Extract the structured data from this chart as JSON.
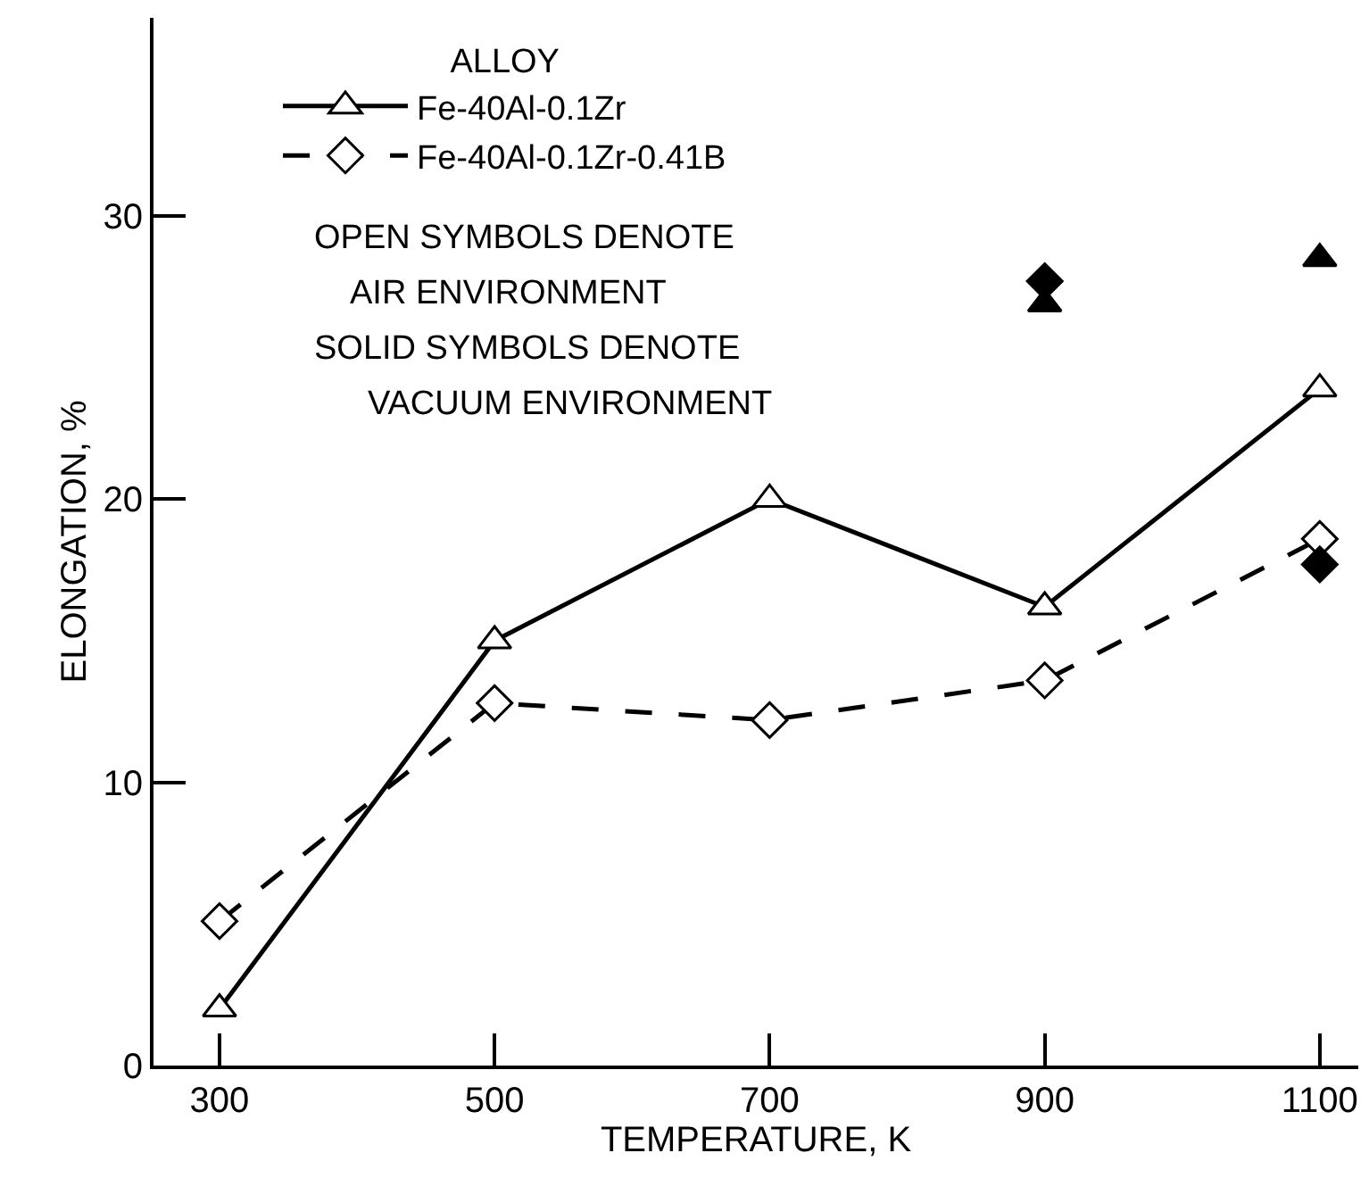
{
  "chart_data": {
    "type": "line",
    "xlabel": "TEMPERATURE, K",
    "ylabel": "ELONGATION, %",
    "legend_title": "ALLOY",
    "x": [
      300,
      500,
      700,
      900,
      1100
    ],
    "series": [
      {
        "name": "Fe-40Al-0.1Zr",
        "color": "#000000",
        "marker": "triangle",
        "line_style": "solid",
        "values": [
          2,
          15,
          20,
          16.2,
          23.9
        ]
      },
      {
        "name": "Fe-40Al-0.1Zr-0.41B",
        "color": "#000000",
        "marker": "diamond",
        "line_style": "dashed",
        "values": [
          5.1,
          12.8,
          12.2,
          13.6,
          18.6
        ]
      },
      {
        "type": "scatter",
        "color": "#000000",
        "marker": "triangle",
        "values": [
          null,
          null,
          null,
          26.9,
          28.5
        ]
      },
      {
        "type": "scatter",
        "color": "#000000",
        "marker": "diamond",
        "values": [
          null,
          null,
          null,
          27.7,
          17.7
        ]
      }
    ],
    "annotations": [
      "OPEN SYMBOLS DENOTE",
      "AIR ENVIRONMENT",
      "SOLID SYMBOLS DENOTE",
      "VACUUM ENVIRONMENT"
    ],
    "xlim": [
      252,
      1128
    ],
    "ylim": [
      0,
      37
    ],
    "xticks": [
      300,
      500,
      700,
      900,
      1100
    ],
    "yticks": [
      0,
      10,
      20,
      30
    ],
    "grid": false,
    "legend": "top left"
  }
}
